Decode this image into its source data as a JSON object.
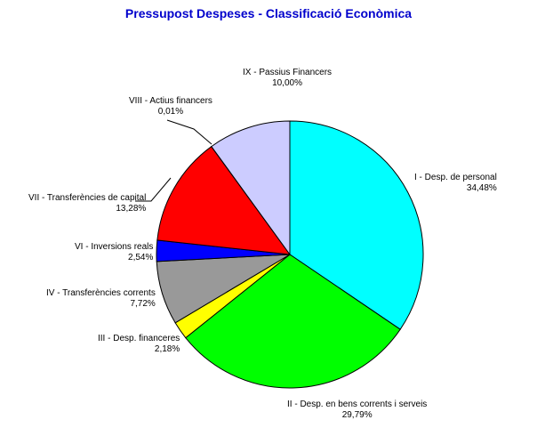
{
  "chart_data": {
    "type": "pie",
    "title": "Pressupost Despeses - Classificació Econòmica",
    "start_angle_deg": 90,
    "direction": "clockwise",
    "legend": "none",
    "slices": [
      {
        "label": "I - Desp. de personal",
        "value_text": "34,48%",
        "value": 34.48,
        "color": "#00ffff"
      },
      {
        "label": "II - Desp. en bens corrents i serveis",
        "value_text": "29,79%",
        "value": 29.79,
        "color": "#00ff00"
      },
      {
        "label": "III - Desp. financeres",
        "value_text": "2,18%",
        "value": 2.18,
        "color": "#ffff00"
      },
      {
        "label": "IV - Transferències corrents",
        "value_text": "7,72%",
        "value": 7.72,
        "color": "#999999"
      },
      {
        "label": "VI - Inversions reals",
        "value_text": "2,54%",
        "value": 2.54,
        "color": "#0000ff"
      },
      {
        "label": "VII - Transferències de capital",
        "value_text": "13,28%",
        "value": 13.28,
        "color": "#ff0000"
      },
      {
        "label": "VIII - Actius financers",
        "value_text": "0,01%",
        "value": 0.01,
        "color": "#000000"
      },
      {
        "label": "IX - Passius Financers",
        "value_text": "10,00%",
        "value": 10.0,
        "color": "#ccccff"
      }
    ]
  }
}
